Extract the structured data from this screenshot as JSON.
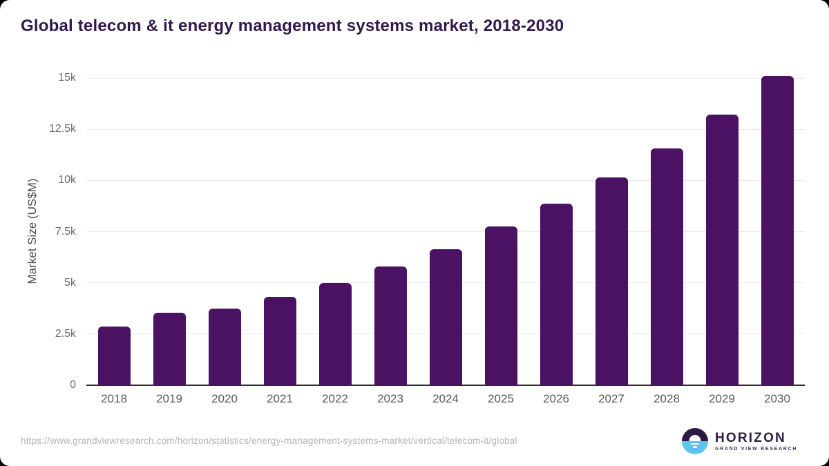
{
  "chart_data": {
    "type": "bar",
    "title": "Global telecom & it energy management systems market, 2018-2030",
    "xlabel": "",
    "ylabel": "Market Size (US$M)",
    "categories": [
      "2018",
      "2019",
      "2020",
      "2021",
      "2022",
      "2023",
      "2024",
      "2025",
      "2026",
      "2027",
      "2028",
      "2029",
      "2030"
    ],
    "values": [
      2850,
      3550,
      3750,
      4300,
      5000,
      5800,
      6650,
      7750,
      8850,
      10150,
      11550,
      13200,
      15100
    ],
    "ylim": [
      0,
      15000
    ],
    "yticks": [
      0,
      2500,
      5000,
      7500,
      10000,
      12500,
      15000
    ],
    "ytick_labels": [
      "0",
      "2.5k",
      "5k",
      "7.5k",
      "10k",
      "12.5k",
      "15k"
    ],
    "grid": true,
    "legend_position": "none",
    "bar_color": "#4b1162"
  },
  "colors": {
    "title_text": "#31184e",
    "bar": "#4b1162",
    "gridline": "#eaeaea",
    "axis_line": "#2e2e2e",
    "tick_text": "#6d6d6d",
    "url_text": "#b4b4b4",
    "logo_purple": "#2b1a44",
    "logo_blue": "#5cc3ee"
  },
  "footer": {
    "source_url": "https://www.grandviewresearch.com/horizon/statistics/energy-management-systems-market/vertical/telecom-it/global",
    "logo": {
      "name": "HORIZON",
      "subtitle": "GRAND VIEW RESEARCH"
    }
  }
}
